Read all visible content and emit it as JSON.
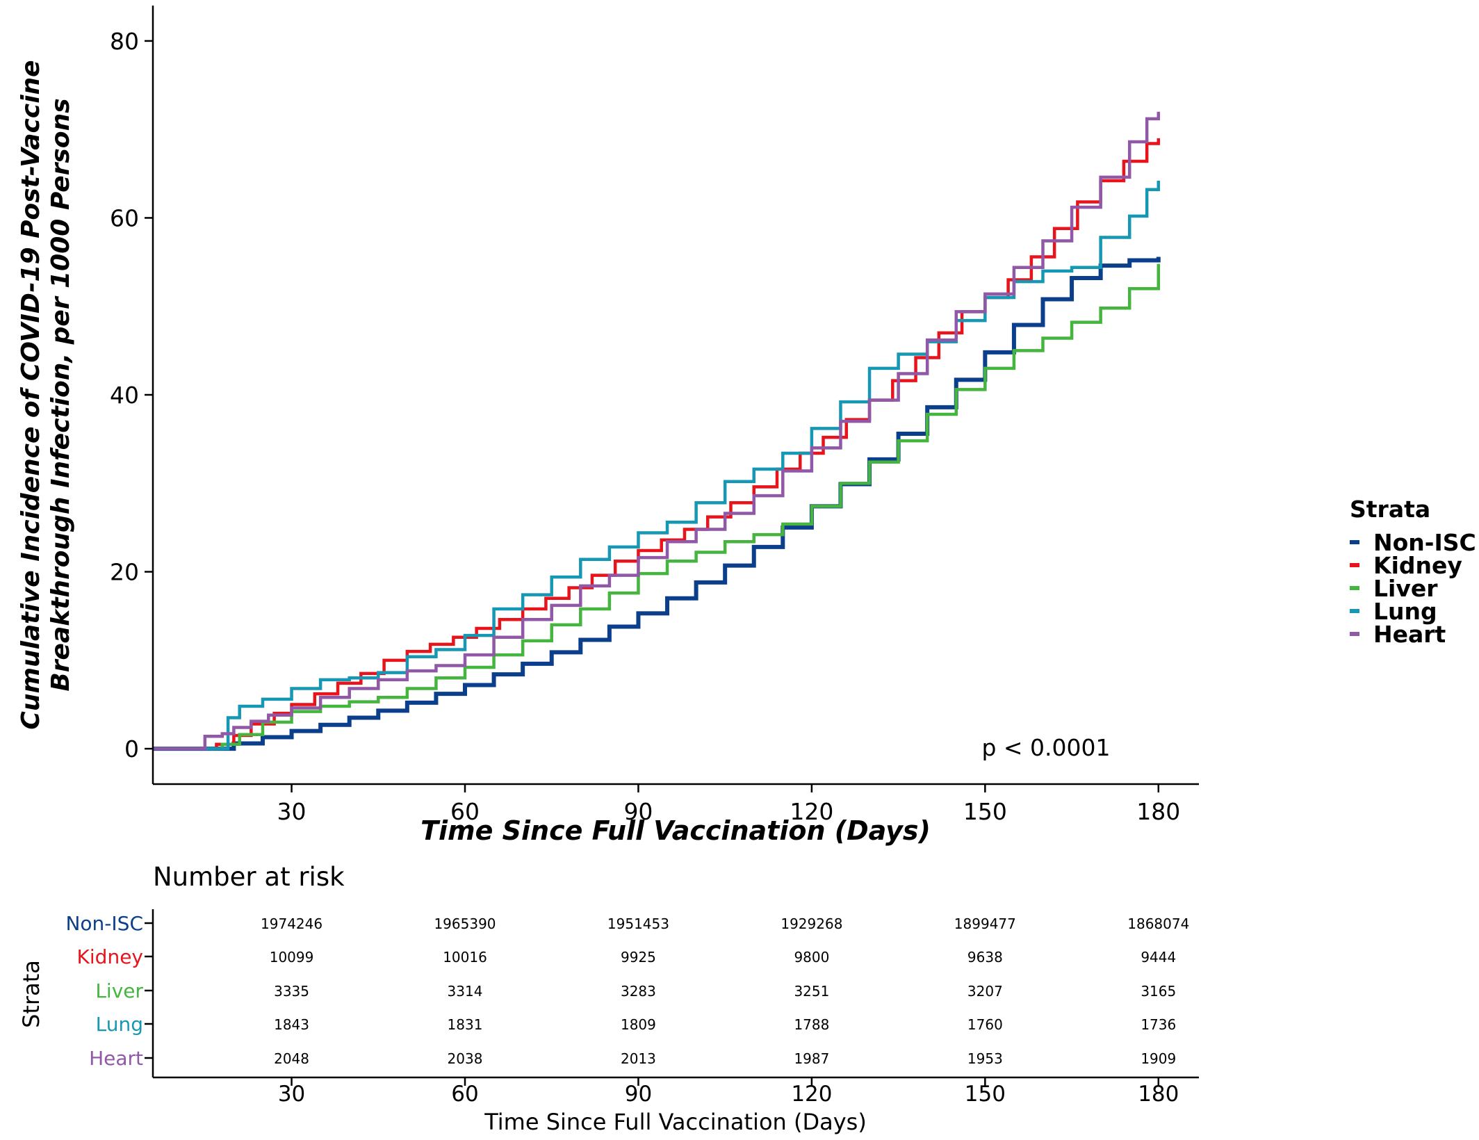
{
  "chart_data": [
    {
      "type": "line",
      "step": true,
      "xlabel": "Time Since Full Vaccination (Days)",
      "ylabel_lines": [
        "Cumulative Incidence of COVID-19 Post-Vaccine",
        "Breakthrough Infection, per 1000 Persons"
      ],
      "xlim": [
        6,
        187
      ],
      "ylim": [
        -4,
        84
      ],
      "x_ticks": [
        30,
        60,
        90,
        120,
        150,
        180
      ],
      "y_ticks": [
        0,
        20,
        40,
        60,
        80
      ],
      "grid": false,
      "annotation": "p < 0.0001",
      "legend": {
        "title": "Strata",
        "position": "right"
      },
      "series": [
        {
          "name": "Non-ISC",
          "color": "#0B3F8C",
          "x": [
            6,
            14,
            20,
            25,
            30,
            35,
            40,
            45,
            50,
            55,
            60,
            65,
            70,
            75,
            80,
            85,
            90,
            95,
            100,
            105,
            110,
            115,
            120,
            125,
            130,
            135,
            140,
            145,
            150,
            155,
            160,
            165,
            170,
            175,
            180
          ],
          "y": [
            0,
            0,
            0.6,
            1.3,
            2.0,
            2.7,
            3.5,
            4.3,
            5.2,
            6.2,
            7.2,
            8.4,
            9.6,
            10.9,
            12.3,
            13.8,
            15.3,
            17.0,
            18.8,
            20.7,
            22.8,
            25.0,
            27.4,
            29.9,
            32.7,
            35.6,
            38.6,
            41.7,
            44.8,
            47.9,
            50.8,
            53.2,
            54.6,
            55.2,
            55.6
          ]
        },
        {
          "name": "Kidney",
          "color": "#E8141C",
          "x": [
            6,
            15,
            17,
            20,
            23,
            27,
            30,
            34,
            38,
            42,
            46,
            50,
            54,
            58,
            62,
            66,
            70,
            74,
            78,
            82,
            86,
            90,
            94,
            98,
            102,
            106,
            110,
            114,
            118,
            122,
            126,
            130,
            134,
            138,
            142,
            146,
            150,
            154,
            158,
            162,
            166,
            170,
            174,
            178,
            180
          ],
          "y": [
            0,
            0,
            0.5,
            1.5,
            2.8,
            4.0,
            5.0,
            6.2,
            7.4,
            8.5,
            10.0,
            11.0,
            11.8,
            12.6,
            13.6,
            14.6,
            15.8,
            17.0,
            18.2,
            19.6,
            21.2,
            22.4,
            23.6,
            24.8,
            26.2,
            27.8,
            29.6,
            31.6,
            33.4,
            35.2,
            37.2,
            39.4,
            41.6,
            44.2,
            47.0,
            49.4,
            51.0,
            53.0,
            55.6,
            58.8,
            61.8,
            64.2,
            66.4,
            68.4,
            69.0
          ]
        },
        {
          "name": "Liver",
          "color": "#45B53F",
          "x": [
            6,
            16,
            18,
            21,
            25,
            30,
            35,
            40,
            45,
            50,
            55,
            60,
            65,
            70,
            75,
            80,
            85,
            90,
            95,
            100,
            105,
            110,
            115,
            120,
            125,
            130,
            135,
            140,
            145,
            150,
            155,
            160,
            165,
            170,
            175,
            180
          ],
          "y": [
            0,
            0,
            0.5,
            1.6,
            3.0,
            4.2,
            4.8,
            5.3,
            5.8,
            6.8,
            8.0,
            9.2,
            10.6,
            12.2,
            14.0,
            15.8,
            17.6,
            19.8,
            21.2,
            22.2,
            23.4,
            24.2,
            25.4,
            27.4,
            30.0,
            32.4,
            34.8,
            37.8,
            40.6,
            43.0,
            45.0,
            46.4,
            48.2,
            49.8,
            52.0,
            54.8
          ]
        },
        {
          "name": "Lung",
          "color": "#1697B4",
          "x": [
            6,
            18,
            19,
            21,
            25,
            30,
            35,
            40,
            45,
            50,
            55,
            60,
            65,
            70,
            75,
            80,
            85,
            90,
            95,
            100,
            105,
            110,
            115,
            120,
            125,
            130,
            135,
            140,
            145,
            150,
            155,
            160,
            165,
            170,
            175,
            178,
            180
          ],
          "y": [
            0,
            0,
            3.5,
            4.8,
            5.6,
            6.8,
            7.8,
            8.0,
            8.6,
            10.4,
            11.2,
            12.8,
            15.8,
            17.4,
            19.4,
            21.4,
            22.8,
            24.4,
            25.6,
            27.8,
            30.2,
            31.6,
            33.4,
            36.2,
            39.2,
            43.0,
            44.6,
            46.0,
            48.4,
            51.0,
            52.8,
            54.0,
            54.4,
            57.8,
            60.2,
            63.2,
            64.2
          ]
        },
        {
          "name": "Heart",
          "color": "#9058A6",
          "x": [
            6,
            14,
            15,
            18,
            20,
            23,
            26,
            30,
            35,
            40,
            45,
            50,
            55,
            60,
            65,
            70,
            75,
            80,
            85,
            90,
            95,
            100,
            105,
            110,
            115,
            120,
            125,
            130,
            135,
            140,
            145,
            150,
            155,
            160,
            165,
            170,
            175,
            178,
            180
          ],
          "y": [
            0,
            0,
            1.4,
            1.7,
            2.4,
            3.1,
            3.8,
            4.6,
            5.8,
            6.8,
            7.8,
            8.8,
            9.4,
            10.6,
            12.6,
            14.6,
            16.2,
            18.4,
            19.6,
            21.6,
            23.4,
            24.8,
            26.6,
            28.6,
            31.4,
            34.0,
            37.0,
            39.4,
            42.4,
            46.2,
            49.4,
            51.4,
            54.4,
            57.4,
            61.2,
            64.6,
            68.6,
            71.2,
            72.0
          ]
        }
      ]
    },
    {
      "type": "table",
      "title": "Number at risk",
      "xlabel": "Time Since Full Vaccination (Days)",
      "ylabel": "Strata",
      "x_ticks": [
        30,
        60,
        90,
        120,
        150,
        180
      ],
      "rows": [
        {
          "name": "Non-ISC",
          "color": "#0B3F8C",
          "values": [
            "1974246",
            "1965390",
            "1951453",
            "1929268",
            "1899477",
            "1868074"
          ]
        },
        {
          "name": "Kidney",
          "color": "#E8141C",
          "values": [
            "10099",
            "10016",
            "9925",
            "9800",
            "9638",
            "9444"
          ]
        },
        {
          "name": "Liver",
          "color": "#45B53F",
          "values": [
            "3335",
            "3314",
            "3283",
            "3251",
            "3207",
            "3165"
          ]
        },
        {
          "name": "Lung",
          "color": "#1697B4",
          "values": [
            "1843",
            "1831",
            "1809",
            "1788",
            "1760",
            "1736"
          ]
        },
        {
          "name": "Heart",
          "color": "#9058A6",
          "values": [
            "2048",
            "2038",
            "2013",
            "1987",
            "1953",
            "1909"
          ]
        }
      ]
    }
  ]
}
